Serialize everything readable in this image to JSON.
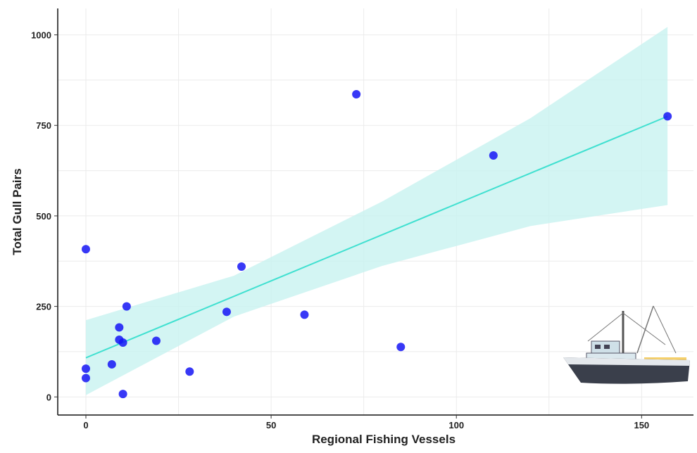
{
  "chart_data": {
    "type": "scatter",
    "xlabel": "Regional Fishing Vessels",
    "ylabel": "Total Gull Pairs",
    "xlim": [
      -7.6,
      164
    ],
    "ylim": [
      -50,
      1073
    ],
    "xticks": [
      0,
      50,
      100,
      150
    ],
    "yticks": [
      0,
      250,
      500,
      750,
      1000
    ],
    "xminor": [
      25,
      75,
      125
    ],
    "yminor": [
      125,
      375,
      625,
      875
    ],
    "grid": true,
    "color": "#1515f5",
    "x": [
      0,
      0,
      0,
      7,
      9,
      9,
      10,
      10,
      11,
      19,
      28,
      38,
      42,
      59,
      73,
      85,
      110,
      157
    ],
    "values": [
      408,
      78,
      52,
      90,
      192,
      158,
      150,
      8,
      250,
      155,
      70,
      235,
      360,
      227,
      836,
      138,
      667,
      775
    ],
    "fit": {
      "color": "#40e0d0",
      "band_color": "#c8f3f0",
      "x": [
        0,
        40,
        80,
        120,
        157
      ],
      "values": [
        108,
        278,
        448,
        618,
        775
      ],
      "lower": [
        5,
        222,
        362,
        472,
        530
      ],
      "upper": [
        212,
        335,
        540,
        770,
        1022
      ]
    }
  }
}
